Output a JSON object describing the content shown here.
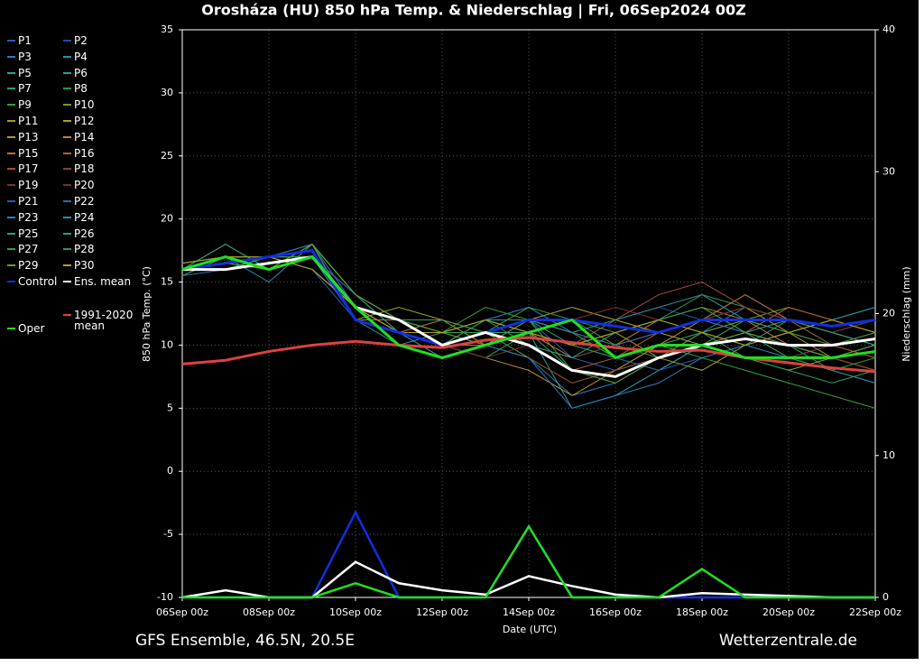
{
  "chart_data": {
    "type": "line",
    "title": "Orosháza  (HU)  850 hPa Temp. & Niederschlag | Fri, 06Sep2024 00Z",
    "x_label": "Date (UTC)",
    "y_label": "850 hPa Temp. (°C)",
    "y2_label": "Niederschlag (mm)",
    "footer_left": "GFS Ensemble, 46.5N, 20.5E",
    "footer_right": "Wetterzentrale.de",
    "xlim": [
      0,
      16
    ],
    "xticks": [
      {
        "value": 0,
        "label": "06Sep 00z"
      },
      {
        "value": 2,
        "label": "08Sep 00z"
      },
      {
        "value": 4,
        "label": "10Sep 00z"
      },
      {
        "value": 6,
        "label": "12Sep 00z"
      },
      {
        "value": 8,
        "label": "14Sep 00z"
      },
      {
        "value": 10,
        "label": "16Sep 00z"
      },
      {
        "value": 12,
        "label": "18Sep 00z"
      },
      {
        "value": 14,
        "label": "20Sep 00z"
      },
      {
        "value": 16,
        "label": "22Sep 00z"
      }
    ],
    "ylim": [
      -10,
      35
    ],
    "yticks": [
      -10,
      -5,
      0,
      5,
      10,
      15,
      20,
      25,
      30,
      35
    ],
    "y2lim": [
      0,
      40
    ],
    "y2ticks": [
      0,
      10,
      20,
      30,
      40
    ],
    "grid": true,
    "x": [
      0,
      1,
      2,
      3,
      4,
      5,
      6,
      7,
      8,
      9,
      10,
      11,
      12,
      13,
      14,
      15,
      16
    ],
    "series": [
      {
        "name": "P1",
        "color": "#2a5db0",
        "values": [
          16,
          16.5,
          17,
          16,
          12,
          11,
          10,
          11,
          12,
          9,
          8,
          10,
          11,
          12,
          10,
          9,
          8
        ]
      },
      {
        "name": "P2",
        "color": "#1f4fa0",
        "values": [
          16,
          17,
          16,
          18,
          13,
          11,
          10,
          12,
          11,
          10,
          12,
          13,
          12,
          11,
          9,
          10,
          11
        ]
      },
      {
        "name": "P3",
        "color": "#2b7bbf",
        "values": [
          15.5,
          16,
          17,
          17,
          14,
          12,
          11,
          10,
          9,
          6,
          7,
          9,
          11,
          13,
          12,
          11,
          10
        ]
      },
      {
        "name": "P4",
        "color": "#2a8fb0",
        "values": [
          16,
          17,
          15,
          18,
          12,
          10,
          11,
          12,
          13,
          11,
          9,
          8,
          10,
          12,
          11,
          12,
          13
        ]
      },
      {
        "name": "P5",
        "color": "#2b9fae",
        "values": [
          16,
          16,
          17,
          16,
          13,
          11,
          9,
          10,
          11,
          5,
          6,
          8,
          10,
          11,
          12,
          10,
          9
        ]
      },
      {
        "name": "P6",
        "color": "#26a090",
        "values": [
          16.5,
          17,
          16,
          18,
          14,
          12,
          10,
          11,
          12,
          10,
          11,
          12,
          13,
          11,
          10,
          9,
          10
        ]
      },
      {
        "name": "P7",
        "color": "#2aa070",
        "values": [
          16,
          17,
          16,
          17,
          13,
          11,
          10,
          9,
          11,
          8,
          7,
          9,
          10,
          11,
          10,
          8,
          7
        ]
      },
      {
        "name": "P8",
        "color": "#2a9a4a",
        "values": [
          16,
          16.5,
          17,
          18,
          12,
          11,
          11,
          12,
          10,
          9,
          10,
          12,
          14,
          13,
          12,
          11,
          12
        ]
      },
      {
        "name": "P9",
        "color": "#3aa030",
        "values": [
          15.5,
          17,
          16,
          17,
          13,
          12,
          11,
          13,
          12,
          11,
          9,
          10,
          9,
          8,
          7,
          6,
          5
        ]
      },
      {
        "name": "P10",
        "color": "#6aa020",
        "values": [
          16,
          16,
          17,
          18,
          14,
          11,
          10,
          11,
          9,
          7,
          8,
          9,
          11,
          12,
          13,
          12,
          11
        ]
      },
      {
        "name": "P11",
        "color": "#a0a020",
        "values": [
          16,
          18,
          16,
          17,
          12,
          13,
          12,
          10,
          11,
          10,
          11,
          9,
          8,
          10,
          11,
          9,
          8
        ]
      },
      {
        "name": "P12",
        "color": "#b0a030",
        "values": [
          16.5,
          17,
          17,
          16,
          13,
          11,
          12,
          11,
          12,
          13,
          12,
          11,
          10,
          9,
          8,
          9,
          10
        ]
      },
      {
        "name": "P13",
        "color": "#c09030",
        "values": [
          16,
          17,
          16,
          18,
          14,
          12,
          10,
          9,
          8,
          6,
          8,
          10,
          12,
          13,
          11,
          10,
          9
        ]
      },
      {
        "name": "P14",
        "color": "#c08040",
        "values": [
          16,
          16,
          17,
          17,
          13,
          11,
          11,
          12,
          11,
          9,
          10,
          11,
          12,
          14,
          12,
          11,
          10
        ]
      },
      {
        "name": "P15",
        "color": "#c07030",
        "values": [
          15.5,
          17,
          16,
          18,
          12,
          12,
          10,
          10,
          12,
          11,
          10,
          12,
          13,
          12,
          10,
          9,
          8
        ]
      },
      {
        "name": "P16",
        "color": "#b06030",
        "values": [
          16,
          17,
          17,
          17,
          13,
          11,
          12,
          11,
          10,
          8,
          9,
          11,
          12,
          11,
          13,
          12,
          11
        ]
      },
      {
        "name": "P17",
        "color": "#a05030",
        "values": [
          16,
          16.5,
          16,
          18,
          14,
          12,
          10,
          12,
          11,
          10,
          12,
          14,
          15,
          13,
          12,
          10,
          9
        ]
      },
      {
        "name": "P18",
        "color": "#904030",
        "values": [
          16.5,
          17,
          17,
          16,
          13,
          10,
          9,
          10,
          9,
          7,
          8,
          9,
          10,
          11,
          10,
          9,
          8
        ]
      },
      {
        "name": "P19",
        "color": "#803030",
        "values": [
          16,
          17,
          16,
          17,
          12,
          11,
          11,
          11,
          12,
          12,
          13,
          12,
          11,
          10,
          9,
          10,
          11
        ]
      },
      {
        "name": "P20",
        "color": "#703030",
        "values": [
          16,
          16,
          17,
          18,
          13,
          12,
          10,
          9,
          10,
          9,
          10,
          11,
          12,
          13,
          12,
          11,
          12
        ]
      },
      {
        "name": "P21",
        "color": "#2a5db0",
        "values": [
          15.5,
          17,
          16,
          17,
          14,
          11,
          10,
          11,
          11,
          10,
          9,
          8,
          9,
          10,
          11,
          12,
          11
        ]
      },
      {
        "name": "P22",
        "color": "#2a70b0",
        "values": [
          16,
          17,
          17,
          18,
          13,
          12,
          11,
          12,
          13,
          11,
          10,
          11,
          12,
          11,
          10,
          9,
          10
        ]
      },
      {
        "name": "P23",
        "color": "#2a80b8",
        "values": [
          16,
          16.5,
          16,
          17,
          12,
          11,
          11,
          10,
          9,
          5,
          6,
          7,
          9,
          10,
          9,
          8,
          7
        ]
      },
      {
        "name": "P24",
        "color": "#2a90a8",
        "values": [
          16.5,
          17,
          17,
          16,
          13,
          12,
          10,
          12,
          12,
          11,
          12,
          13,
          14,
          12,
          11,
          12,
          13
        ]
      },
      {
        "name": "P25",
        "color": "#2aa088",
        "values": [
          16,
          18,
          16,
          18,
          14,
          11,
          10,
          11,
          10,
          9,
          11,
          12,
          11,
          10,
          12,
          11,
          10
        ]
      },
      {
        "name": "P26",
        "color": "#2aa068",
        "values": [
          16,
          16,
          17,
          17,
          13,
          12,
          12,
          11,
          11,
          10,
          9,
          10,
          11,
          9,
          8,
          7,
          8
        ]
      },
      {
        "name": "P27",
        "color": "#2aa050",
        "values": [
          15.5,
          17,
          16,
          18,
          12,
          11,
          10,
          12,
          11,
          12,
          11,
          12,
          13,
          11,
          9,
          8,
          9
        ]
      },
      {
        "name": "P28",
        "color": "#3a9a40",
        "values": [
          16,
          17,
          17,
          17,
          13,
          12,
          11,
          11,
          13,
          12,
          10,
          9,
          10,
          12,
          11,
          10,
          11
        ]
      },
      {
        "name": "P29",
        "color": "#5aa030",
        "values": [
          16,
          16.5,
          16,
          18,
          14,
          12,
          11,
          10,
          12,
          8,
          7,
          9,
          10,
          11,
          10,
          9,
          10
        ]
      },
      {
        "name": "P30",
        "color": "#b0a020",
        "values": [
          16.5,
          17,
          17,
          16,
          13,
          11,
          11,
          12,
          11,
          10,
          11,
          12,
          11,
          10,
          11,
          12,
          11
        ]
      },
      {
        "name": "Control",
        "color": "#1030e0",
        "values": [
          16,
          16.5,
          17,
          17.5,
          12,
          11,
          10,
          11,
          12,
          12,
          11.5,
          11,
          12,
          12,
          12,
          11.5,
          12
        ],
        "precip": [
          0,
          0,
          0,
          0,
          6,
          0,
          0,
          0,
          5,
          0,
          0,
          0,
          0,
          0,
          0,
          0,
          0
        ]
      },
      {
        "name": "Ens. mean",
        "color": "#ffffff",
        "values": [
          16,
          16,
          16.5,
          17,
          13,
          12,
          10,
          11,
          10,
          8,
          7.5,
          9,
          10,
          10.5,
          10,
          10,
          10.5
        ],
        "precip": [
          0,
          0.5,
          0,
          0,
          2.5,
          1,
          0.5,
          0.2,
          1.5,
          0.8,
          0.2,
          0,
          0.3,
          0.2,
          0.1,
          0,
          0
        ]
      },
      {
        "name": "1991-2020 mean",
        "color": "#e04040",
        "values": [
          8.5,
          8.8,
          9.5,
          10,
          10.3,
          10,
          9.8,
          10.4,
          10.6,
          10.2,
          9.8,
          9.5,
          9.6,
          9,
          8.6,
          8.2,
          7.9
        ]
      },
      {
        "name": "Oper",
        "color": "#20e020",
        "values": [
          16,
          17,
          16,
          17,
          13,
          10,
          9,
          10,
          11,
          12,
          9,
          10,
          10,
          9,
          9,
          9,
          9.5
        ],
        "precip": [
          0,
          0,
          0,
          0,
          1,
          0,
          0,
          0,
          5,
          0,
          0,
          0,
          2,
          0,
          0,
          0,
          0
        ]
      }
    ]
  }
}
